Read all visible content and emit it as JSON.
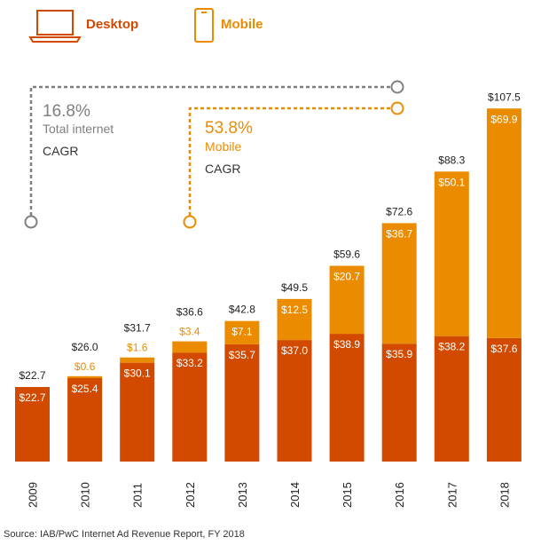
{
  "legend": {
    "desktop_label": "Desktop",
    "mobile_label": "Mobile",
    "desktop_icon": "laptop-icon",
    "mobile_icon": "smartphone-icon"
  },
  "colors": {
    "desktop": "#D24A00",
    "mobile": "#EB8C00",
    "dashed_total": "#7F7F7F",
    "text": "#222222"
  },
  "annotations": {
    "total": {
      "percent": "16.8%",
      "line1": "Total internet",
      "line2": "CAGR"
    },
    "mobile": {
      "percent": "53.8%",
      "line1": "Mobile",
      "line2": "CAGR"
    }
  },
  "source": "Source: IAB/PwC Internet Ad Revenue Report,  FY 2018",
  "chart_data": {
    "type": "bar",
    "stacked": true,
    "title": "",
    "xlabel": "",
    "ylabel": "",
    "ylim": [
      0,
      110
    ],
    "categories": [
      "2009",
      "2010",
      "2011",
      "2012",
      "2013",
      "2014",
      "2015",
      "2016",
      "2017",
      "2018"
    ],
    "series": [
      {
        "name": "Desktop",
        "values": [
          22.7,
          25.4,
          30.1,
          33.2,
          35.7,
          37.0,
          38.9,
          35.9,
          38.2,
          37.6
        ],
        "labels": [
          "$22.7",
          "$25.4",
          "$30.1",
          "$33.2",
          "$35.7",
          "$37.0",
          "$38.9",
          "$35.9",
          "$38.2",
          "$37.6"
        ]
      },
      {
        "name": "Mobile",
        "values": [
          0,
          0.6,
          1.6,
          3.4,
          7.1,
          12.5,
          20.7,
          36.7,
          50.1,
          69.9
        ],
        "labels": [
          "",
          "$0.6",
          "$1.6",
          "$3.4",
          "$7.1",
          "$12.5",
          "$20.7",
          "$36.7",
          "$50.1",
          "$69.9"
        ]
      }
    ],
    "totals": [
      22.7,
      26.0,
      31.7,
      36.6,
      42.8,
      49.5,
      59.6,
      72.6,
      88.3,
      107.5
    ],
    "total_labels": [
      "$22.7",
      "$26.0",
      "$31.7",
      "$36.6",
      "$42.8",
      "$49.5",
      "$59.6",
      "$72.6",
      "$88.3",
      "$107.5"
    ]
  }
}
